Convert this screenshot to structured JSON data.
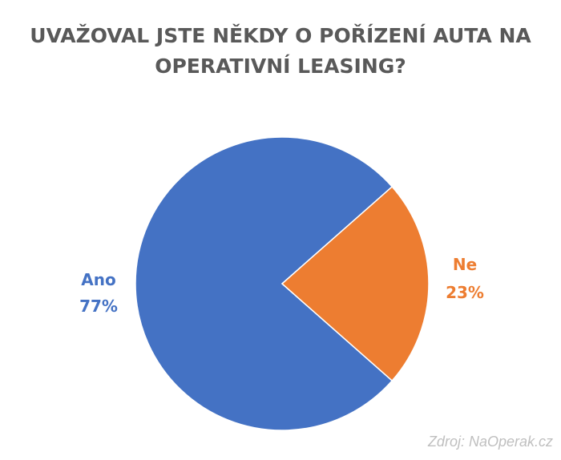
{
  "chart_data": {
    "type": "pie",
    "title_line1": "UVAŽOVAL JSTE NĚKDY O POŘÍZENÍ AUTA NA",
    "title_line2": "OPERATIVNÍ LEASING?",
    "slices": [
      {
        "label": "Ano",
        "value": 77,
        "value_label": "77%",
        "color": "#4472C4"
      },
      {
        "label": "Ne",
        "value": 23,
        "value_label": "23%",
        "color": "#ED7D31"
      }
    ]
  },
  "source": "Zdroj: NaOperak.cz"
}
